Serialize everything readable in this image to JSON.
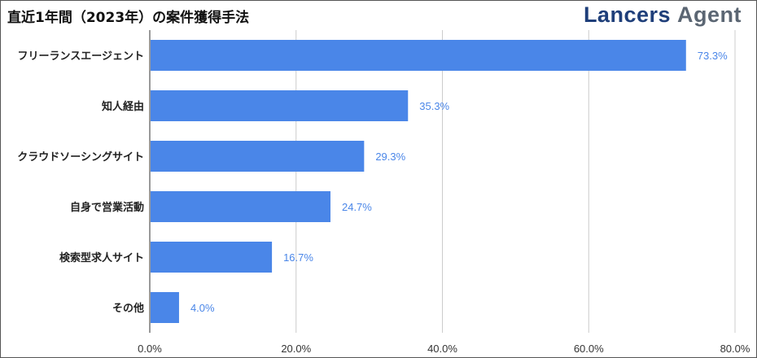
{
  "title": "直近1年間（2023年）の案件獲得手法",
  "logo": {
    "part1": "Lancers",
    "part2": "Agent",
    "color1": "#1f3f7a",
    "color2": "#5b6673"
  },
  "chart_data": {
    "type": "bar",
    "orientation": "horizontal",
    "title": "直近1年間（2023年）の案件獲得手法",
    "categories": [
      "フリーランスエージェント",
      "知人経由",
      "クラウドソーシングサイト",
      "自身で営業活動",
      "検索型求人サイト",
      "その他"
    ],
    "values": [
      73.3,
      35.3,
      29.3,
      24.7,
      16.7,
      4.0
    ],
    "value_labels": [
      "73.3%",
      "35.3%",
      "29.3%",
      "24.7%",
      "16.7%",
      "4.0%"
    ],
    "xlim": [
      0,
      80
    ],
    "xticks": [
      0,
      20,
      40,
      60,
      80
    ],
    "xtick_labels": [
      "0.0%",
      "20.0%",
      "40.0%",
      "60.0%",
      "80.0%"
    ],
    "xlabel": "",
    "ylabel": "",
    "grid": true,
    "legend": "none",
    "bar_color": "#4a86e8"
  }
}
